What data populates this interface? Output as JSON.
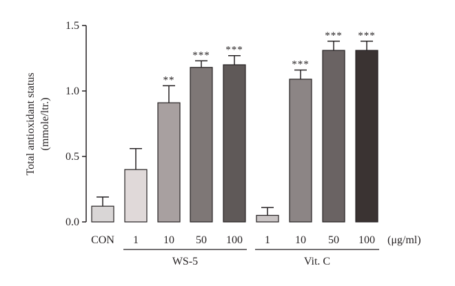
{
  "chart_data": {
    "type": "bar",
    "title": "",
    "ylabel_line1": "Total antioxidant status",
    "ylabel_line2": "(mmole/ltr.)",
    "unit_label": "(μg/ml)",
    "ylim": [
      0,
      1.5
    ],
    "yticks": [
      "0.0",
      "0.5",
      "1.0",
      "1.5"
    ],
    "grid": false,
    "groups": [
      {
        "name": "WS-5",
        "start": 1,
        "end": 4
      },
      {
        "name": "Vit. C",
        "start": 5,
        "end": 8
      }
    ],
    "bars": [
      {
        "category": "CON",
        "value": 0.12,
        "error": 0.07,
        "significance": "",
        "color": "#d9d6d6"
      },
      {
        "category": "1",
        "value": 0.4,
        "error": 0.16,
        "significance": "",
        "color": "#e0d9d9"
      },
      {
        "category": "10",
        "value": 0.91,
        "error": 0.13,
        "significance": "**",
        "color": "#a8a0a0"
      },
      {
        "category": "50",
        "value": 1.18,
        "error": 0.05,
        "significance": "***",
        "color": "#7e7776"
      },
      {
        "category": "100",
        "value": 1.2,
        "error": 0.07,
        "significance": "***",
        "color": "#5f5958"
      },
      {
        "category": "1",
        "value": 0.05,
        "error": 0.06,
        "significance": "",
        "color": "#c9c4c4"
      },
      {
        "category": "10",
        "value": 1.09,
        "error": 0.07,
        "significance": "***",
        "color": "#8c8585"
      },
      {
        "category": "50",
        "value": 1.31,
        "error": 0.07,
        "significance": "***",
        "color": "#6a6363"
      },
      {
        "category": "100",
        "value": 1.31,
        "error": 0.07,
        "significance": "***",
        "color": "#3a3332"
      }
    ]
  }
}
